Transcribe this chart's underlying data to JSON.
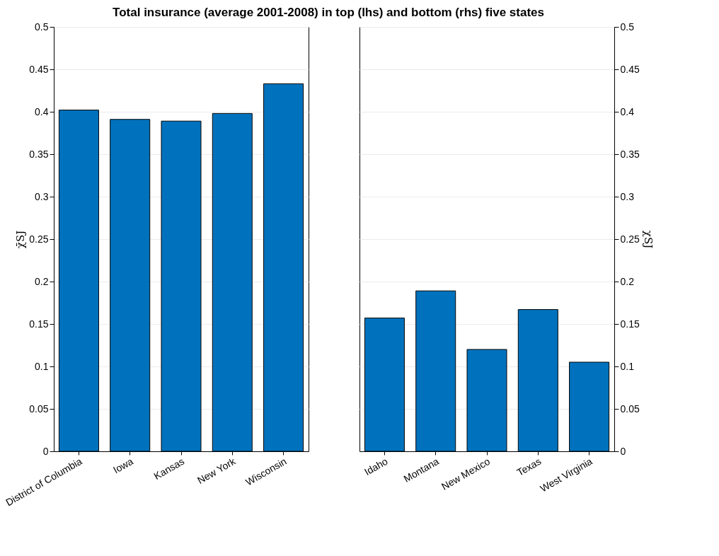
{
  "chart_data": [
    {
      "type": "bar",
      "title": "Total insurance (average 2001-2008) in top (lhs) and bottom (rhs) five states",
      "ylabel": "χ̄SJ",
      "categories": [
        "District of Columbia",
        "Iowa",
        "Kansas",
        "New York",
        "Wisconsin"
      ],
      "series": [
        {
          "color": "#0072bd",
          "values": [
            0.402,
            0.391,
            0.389,
            0.398,
            0.433
          ]
        }
      ],
      "ylim": [
        0,
        0.5
      ],
      "yticks": [
        0,
        0.05,
        0.1,
        0.15,
        0.2,
        0.25,
        0.3,
        0.35,
        0.4,
        0.45,
        0.5
      ],
      "grid": "y"
    },
    {
      "type": "bar",
      "y2label": "χSJ",
      "categories": [
        "Idaho",
        "Montana",
        "New Mexico",
        "Texas",
        "West Virginia"
      ],
      "series": [
        {
          "color": "#0072bd",
          "axis": "y2",
          "values": [
            0.157,
            0.189,
            0.12,
            0.167,
            0.105
          ]
        }
      ],
      "y2lim": [
        0,
        0.5
      ],
      "y2ticks": [
        0,
        0.05,
        0.1,
        0.15,
        0.2,
        0.25,
        0.3,
        0.35,
        0.4,
        0.45,
        0.5
      ],
      "grid": "y"
    }
  ]
}
